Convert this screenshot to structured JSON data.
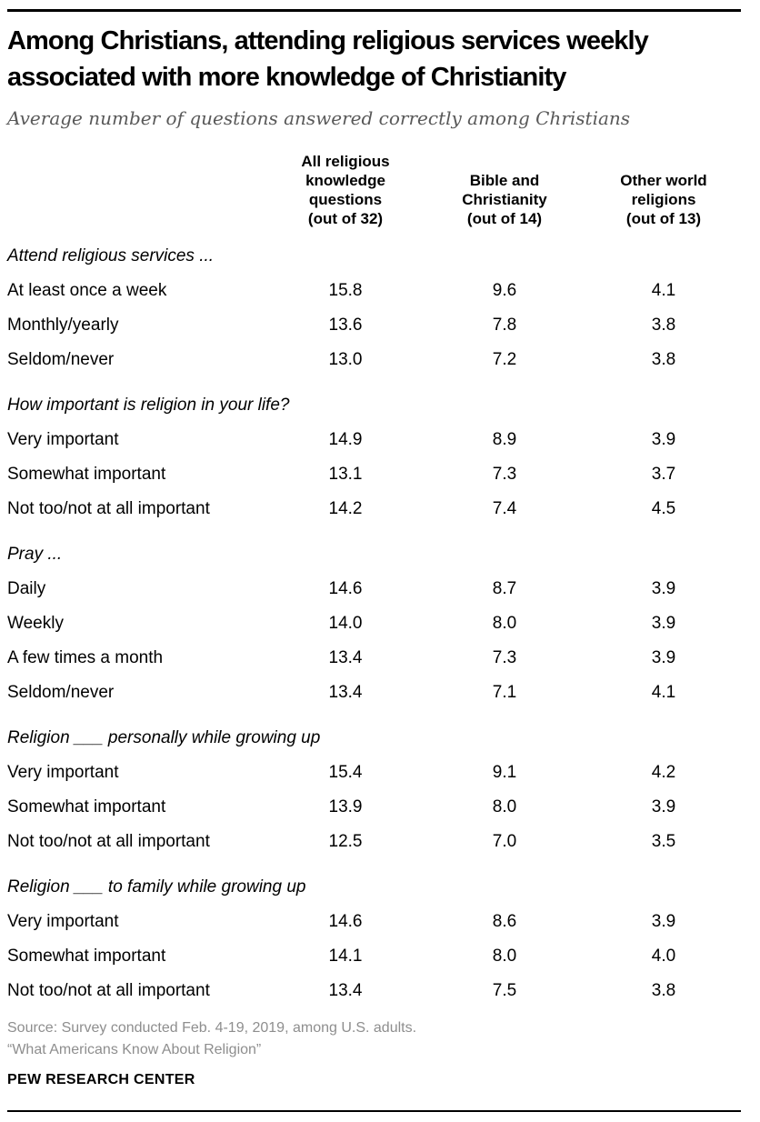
{
  "colors": {
    "rule": "#000000",
    "title_text": "#000000",
    "subtitle_text": "#595959",
    "body_text": "#000000",
    "source_text": "#8e8e8e"
  },
  "chart_data": {
    "type": "table",
    "title": "Among Christians, attending religious services weekly\nassociated with more knowledge of Christianity",
    "subtitle": "Average number of questions answered correctly among Christians",
    "columns": [
      "All religious knowledge questions (out of 32)",
      "Bible and Christianity (out of 14)",
      "Other world religions (out of 13)"
    ],
    "columns_display": [
      "All religious\nknowledge\nquestions\n(out of 32)",
      "Bible and\nChristianity\n(out of 14)",
      "Other world\nreligions\n(out of 13)"
    ],
    "column_max_scores": [
      32,
      14,
      13
    ],
    "sections": [
      {
        "heading": "Attend religious services ...",
        "rows": [
          {
            "label": "At least once a week",
            "values": [
              "15.8",
              "9.6",
              "4.1"
            ]
          },
          {
            "label": "Monthly/yearly",
            "values": [
              "13.6",
              "7.8",
              "3.8"
            ]
          },
          {
            "label": "Seldom/never",
            "values": [
              "13.0",
              "7.2",
              "3.8"
            ]
          }
        ]
      },
      {
        "heading": "How important is religion in your life?",
        "rows": [
          {
            "label": "Very important",
            "values": [
              "14.9",
              "8.9",
              "3.9"
            ]
          },
          {
            "label": "Somewhat important",
            "values": [
              "13.1",
              "7.3",
              "3.7"
            ]
          },
          {
            "label": "Not too/not at all important",
            "values": [
              "14.2",
              "7.4",
              "4.5"
            ]
          }
        ]
      },
      {
        "heading": "Pray ...",
        "rows": [
          {
            "label": "Daily",
            "values": [
              "14.6",
              "8.7",
              "3.9"
            ]
          },
          {
            "label": "Weekly",
            "values": [
              "14.0",
              "8.0",
              "3.9"
            ]
          },
          {
            "label": "A few times a month",
            "values": [
              "13.4",
              "7.3",
              "3.9"
            ]
          },
          {
            "label": "Seldom/never",
            "values": [
              "13.4",
              "7.1",
              "4.1"
            ]
          }
        ]
      },
      {
        "heading": "Religion ___ personally while growing up",
        "rows": [
          {
            "label": "Very important",
            "values": [
              "15.4",
              "9.1",
              "4.2"
            ]
          },
          {
            "label": "Somewhat important",
            "values": [
              "13.9",
              "8.0",
              "3.9"
            ]
          },
          {
            "label": "Not too/not at all important",
            "values": [
              "12.5",
              "7.0",
              "3.5"
            ]
          }
        ]
      },
      {
        "heading": "Religion ___ to family while growing up",
        "rows": [
          {
            "label": "Very important",
            "values": [
              "14.6",
              "8.6",
              "3.9"
            ]
          },
          {
            "label": "Somewhat important",
            "values": [
              "14.1",
              "8.0",
              "4.0"
            ]
          },
          {
            "label": "Not too/not at all important",
            "values": [
              "13.4",
              "7.5",
              "3.8"
            ]
          }
        ]
      }
    ]
  },
  "footer": {
    "source_line1": "Source: Survey conducted Feb. 4-19, 2019, among U.S. adults.",
    "source_line2": "“What Americans Know About Religion”",
    "brand": "PEW RESEARCH CENTER"
  }
}
